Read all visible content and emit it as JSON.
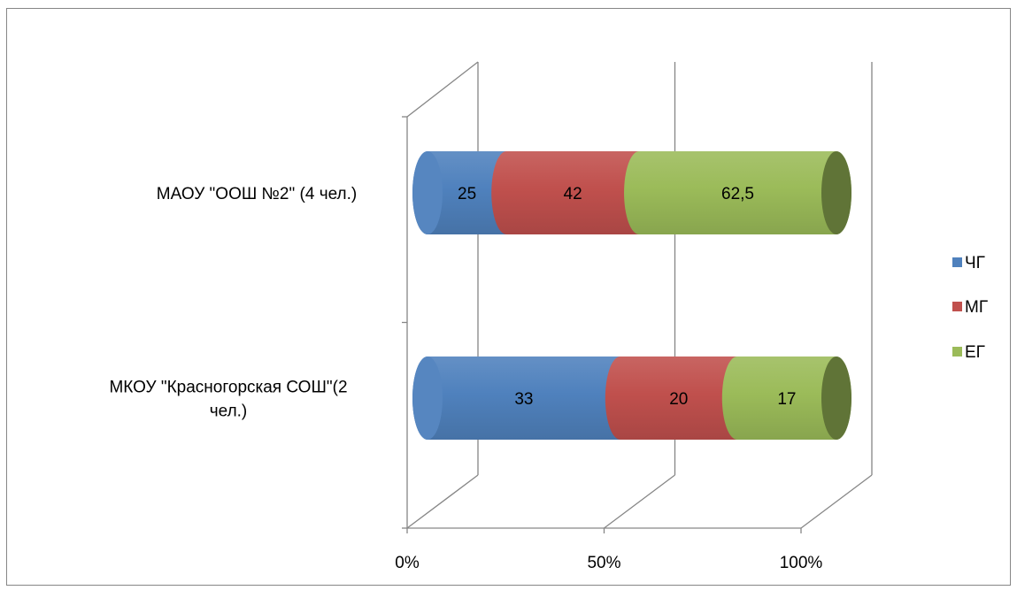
{
  "chart_data": {
    "type": "bar",
    "orientation": "horizontal",
    "stacked": "percent",
    "style": "3d-cylinder",
    "categories": [
      "МАОУ \"ООШ №2\" (4 чел.)",
      "МКОУ \"Красногорская СОШ\"(2 чел.)"
    ],
    "category_lines": [
      [
        "МАОУ \"ООШ №2\" (4 чел.)"
      ],
      [
        "МКОУ \"Красногорская СОШ\"(2",
        "чел.)"
      ]
    ],
    "series": [
      {
        "name": "ЧГ",
        "values": [
          25,
          33
        ],
        "labels": [
          "25",
          "33"
        ],
        "color": "#4f81bd"
      },
      {
        "name": "МГ",
        "values": [
          42,
          20
        ],
        "labels": [
          "42",
          "20"
        ],
        "color": "#c0504d"
      },
      {
        "name": "ЕГ",
        "values": [
          62.5,
          17
        ],
        "labels": [
          "62,5",
          "17"
        ],
        "color": "#9bbb59"
      }
    ],
    "x_ticks": [
      "0%",
      "50%",
      "100%"
    ],
    "xlim": [
      0,
      100
    ],
    "grid": true,
    "legend": "right",
    "title": "",
    "xlabel": "",
    "ylabel": ""
  }
}
